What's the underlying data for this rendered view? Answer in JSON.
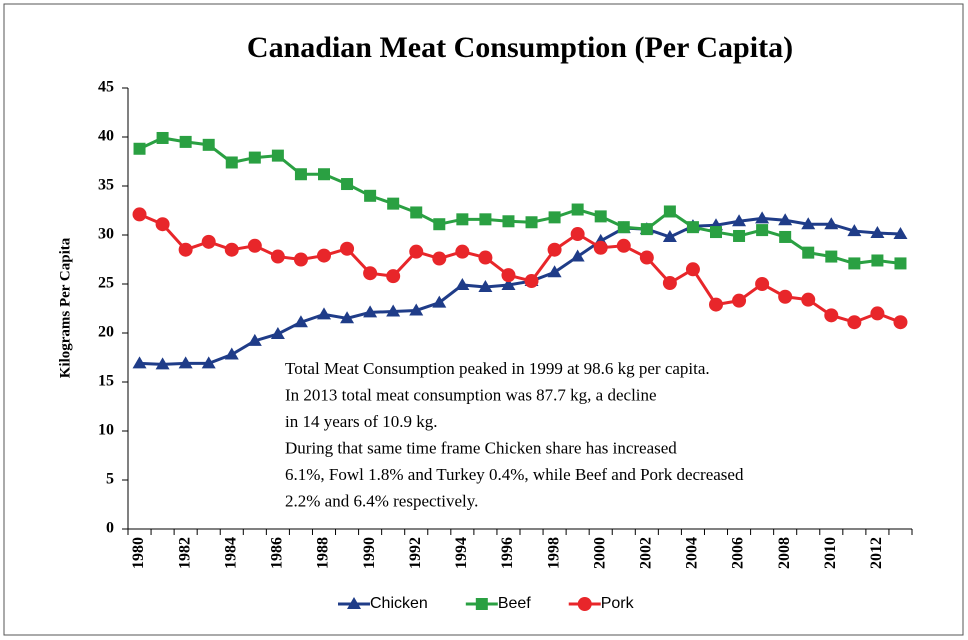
{
  "chart_data": {
    "type": "line",
    "title": "Canadian Meat Consumption (Per Capita)",
    "y_label": "Kilograms Per Capita",
    "categories": [
      "1980",
      null,
      "1982",
      null,
      "1984",
      null,
      "1986",
      null,
      "1988",
      null,
      "1990",
      null,
      "1992",
      null,
      "1994",
      null,
      "1996",
      null,
      "1998",
      null,
      "2000",
      null,
      "2002",
      null,
      "2004",
      null,
      "2006",
      null,
      "2008",
      null,
      "2010",
      null,
      "2012",
      null
    ],
    "series": [
      {
        "name": "Chicken",
        "color": "#1f3c88",
        "marker": "triangle",
        "values": [
          16.9,
          16.8,
          16.9,
          16.9,
          17.8,
          19.2,
          19.9,
          21.1,
          21.9,
          21.5,
          22.1,
          22.2,
          22.3,
          23.1,
          24.9,
          24.7,
          24.9,
          25.3,
          26.2,
          27.8,
          29.4,
          30.7,
          30.6,
          29.8,
          30.9,
          31.0,
          31.4,
          31.7,
          31.5,
          31.1,
          31.1,
          30.4,
          30.2,
          30.1
        ]
      },
      {
        "name": "Beef",
        "color": "#2aa042",
        "marker": "square",
        "values": [
          38.8,
          39.9,
          39.5,
          39.2,
          37.4,
          37.9,
          38.1,
          36.2,
          36.2,
          35.2,
          34.0,
          33.2,
          32.3,
          31.1,
          31.6,
          31.6,
          31.4,
          31.3,
          31.8,
          32.6,
          31.9,
          30.8,
          30.6,
          32.4,
          30.8,
          30.3,
          29.9,
          30.5,
          29.8,
          28.2,
          27.8,
          27.1,
          27.4,
          27.1
        ]
      },
      {
        "name": "Pork",
        "color": "#e8262a",
        "marker": "circle",
        "values": [
          32.1,
          31.1,
          28.5,
          29.3,
          28.5,
          28.9,
          27.8,
          27.5,
          27.9,
          28.6,
          26.1,
          25.8,
          28.3,
          27.6,
          28.3,
          27.7,
          25.9,
          25.3,
          28.5,
          30.1,
          28.7,
          28.9,
          27.7,
          25.1,
          26.5,
          22.9,
          23.3,
          25.0,
          23.7,
          23.4,
          21.8,
          21.1,
          22.0,
          21.1
        ]
      }
    ],
    "ylim": [
      0,
      45
    ],
    "yticks": [
      0,
      5,
      10,
      15,
      20,
      25,
      30,
      35,
      40,
      45
    ],
    "grid": false,
    "legend": "bottom",
    "annotation": [
      "Total Meat Consumption peaked in 1999 at 98.6 kg per capita.",
      "In 2013 total meat consumption was 87.7 kg, a decline",
      "in 14 years of 10.9 kg.",
      "During that same time frame Chicken share has increased",
      "6.1%, Fowl 1.8% and Turkey 0.4%, while Beef and Pork decreased",
      "2.2% and 6.4% respectively."
    ]
  }
}
